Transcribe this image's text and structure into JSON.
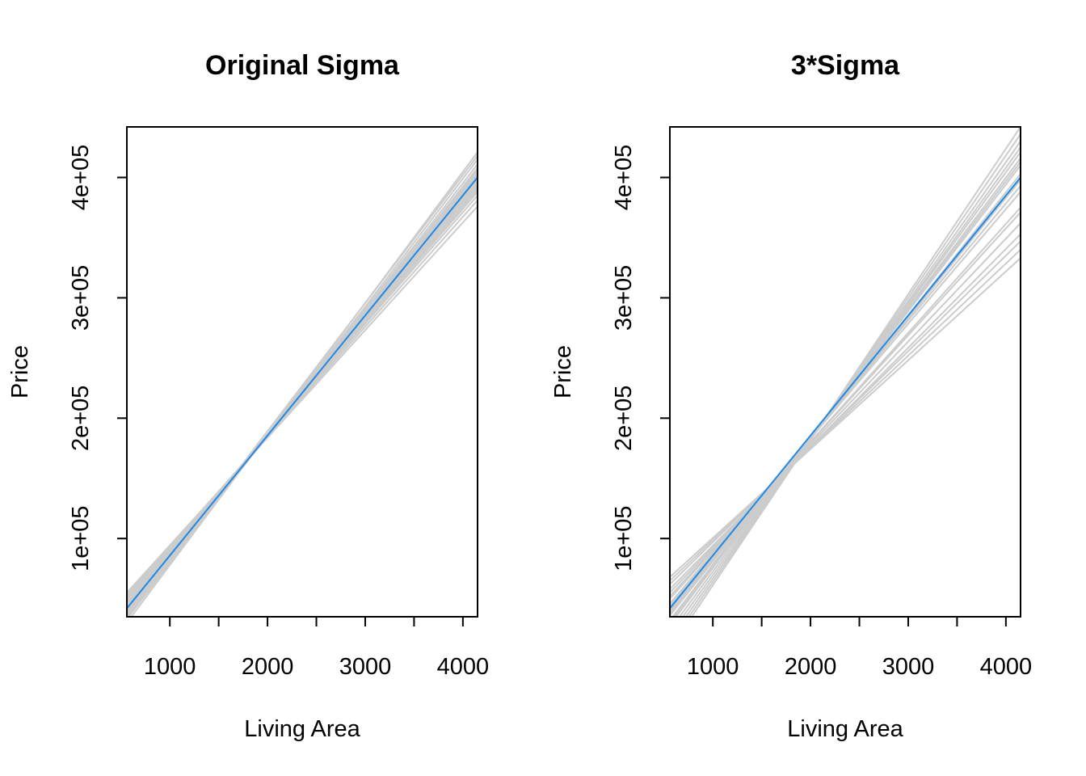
{
  "colors": {
    "fit_line": "#1E88E5",
    "sample_lines": "#CCCCCC",
    "axes": "#000000"
  },
  "chart_data": [
    {
      "type": "line",
      "title": "Original Sigma",
      "xlabel": "Living Area",
      "ylabel": "Price",
      "xlim": [
        560,
        4150
      ],
      "ylim": [
        35000,
        442000
      ],
      "x_ticks": [
        1000,
        1500,
        2000,
        2500,
        3000,
        3500,
        4000
      ],
      "x_tick_labels": [
        "1000",
        "",
        "2000",
        "",
        "3000",
        "",
        "4000"
      ],
      "y_ticks": [
        100000,
        200000,
        300000,
        400000
      ],
      "y_tick_labels": [
        "1e+05",
        "2e+05",
        "3e+05",
        "4e+05"
      ],
      "grid": false,
      "fit_line": {
        "name": "fit",
        "x": [
          560,
          4150
        ],
        "y": [
          42000,
          400000
        ]
      },
      "sample_lines": [
        {
          "x": [
            560,
            4150
          ],
          "y": [
            52000,
            385000
          ]
        },
        {
          "x": [
            560,
            4150
          ],
          "y": [
            48000,
            392000
          ]
        },
        {
          "x": [
            560,
            4150
          ],
          "y": [
            45000,
            396000
          ]
        },
        {
          "x": [
            560,
            4150
          ],
          "y": [
            40000,
            403000
          ]
        },
        {
          "x": [
            560,
            4150
          ],
          "y": [
            37000,
            408000
          ]
        },
        {
          "x": [
            560,
            4150
          ],
          "y": [
            33000,
            415000
          ]
        },
        {
          "x": [
            560,
            4150
          ],
          "y": [
            30000,
            421000
          ]
        },
        {
          "x": [
            560,
            4150
          ],
          "y": [
            55000,
            376000
          ]
        },
        {
          "x": [
            560,
            4150
          ],
          "y": [
            43000,
            399000
          ]
        },
        {
          "x": [
            560,
            4150
          ],
          "y": [
            50000,
            388000
          ]
        },
        {
          "x": [
            560,
            4150
          ],
          "y": [
            38000,
            405000
          ]
        },
        {
          "x": [
            560,
            4150
          ],
          "y": [
            47000,
            394000
          ]
        },
        {
          "x": [
            560,
            4150
          ],
          "y": [
            35000,
            411000
          ]
        },
        {
          "x": [
            560,
            4150
          ],
          "y": [
            41000,
            401000
          ]
        },
        {
          "x": [
            560,
            4150
          ],
          "y": [
            53000,
            381000
          ]
        },
        {
          "x": [
            560,
            4150
          ],
          "y": [
            44000,
            397000
          ]
        },
        {
          "x": [
            560,
            4150
          ],
          "y": [
            36000,
            418000
          ]
        },
        {
          "x": [
            560,
            4150
          ],
          "y": [
            49000,
            390000
          ]
        },
        {
          "x": [
            560,
            4150
          ],
          "y": [
            42000,
            402000
          ]
        },
        {
          "x": [
            560,
            4150
          ],
          "y": [
            39000,
            406000
          ]
        }
      ]
    },
    {
      "type": "line",
      "title": "3*Sigma",
      "xlabel": "Living Area",
      "ylabel": "Price",
      "xlim": [
        560,
        4150
      ],
      "ylim": [
        35000,
        442000
      ],
      "x_ticks": [
        1000,
        1500,
        2000,
        2500,
        3000,
        3500,
        4000
      ],
      "x_tick_labels": [
        "1000",
        "",
        "2000",
        "",
        "3000",
        "",
        "4000"
      ],
      "y_ticks": [
        100000,
        200000,
        300000,
        400000
      ],
      "y_tick_labels": [
        "1e+05",
        "2e+05",
        "3e+05",
        "4e+05"
      ],
      "grid": false,
      "fit_line": {
        "name": "fit",
        "x": [
          560,
          4150
        ],
        "y": [
          42000,
          400000
        ]
      },
      "sample_lines": [
        {
          "x": [
            560,
            4150
          ],
          "y": [
            68000,
            333000
          ]
        },
        {
          "x": [
            560,
            4150
          ],
          "y": [
            65000,
            340000
          ]
        },
        {
          "x": [
            560,
            4150
          ],
          "y": [
            62000,
            347000
          ]
        },
        {
          "x": [
            560,
            4150
          ],
          "y": [
            58000,
            353000
          ]
        },
        {
          "x": [
            560,
            4150
          ],
          "y": [
            55000,
            362000
          ]
        },
        {
          "x": [
            560,
            4150
          ],
          "y": [
            50000,
            375000
          ]
        },
        {
          "x": [
            560,
            4150
          ],
          "y": [
            46000,
            388000
          ]
        },
        {
          "x": [
            560,
            4150
          ],
          "y": [
            40000,
            398000
          ]
        },
        {
          "x": [
            560,
            4150
          ],
          "y": [
            36000,
            403000
          ]
        },
        {
          "x": [
            560,
            4150
          ],
          "y": [
            32000,
            410000
          ]
        },
        {
          "x": [
            560,
            4150
          ],
          "y": [
            28000,
            416000
          ]
        },
        {
          "x": [
            560,
            4150
          ],
          "y": [
            24000,
            421000
          ]
        },
        {
          "x": [
            560,
            4150
          ],
          "y": [
            20000,
            425000
          ]
        },
        {
          "x": [
            560,
            4150
          ],
          "y": [
            16000,
            430000
          ]
        },
        {
          "x": [
            560,
            4150
          ],
          "y": [
            12000,
            436000
          ]
        },
        {
          "x": [
            560,
            4150
          ],
          "y": [
            8000,
            442000
          ]
        },
        {
          "x": [
            560,
            4150
          ],
          "y": [
            44000,
            393000
          ]
        },
        {
          "x": [
            560,
            4150
          ],
          "y": [
            30000,
            413000
          ]
        },
        {
          "x": [
            560,
            4150
          ],
          "y": [
            38000,
            400000
          ]
        },
        {
          "x": [
            560,
            4150
          ],
          "y": [
            52000,
            371000
          ]
        }
      ]
    }
  ]
}
